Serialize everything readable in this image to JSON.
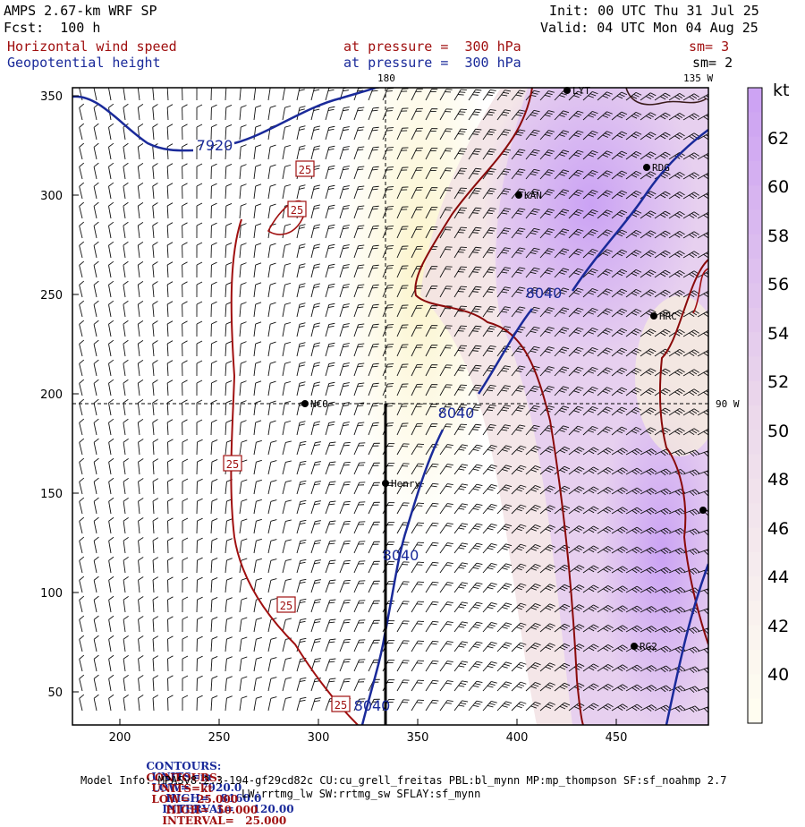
{
  "header": {
    "model_title": "AMPS 2.67-km WRF SP",
    "forecast": "Fcst:  100 h",
    "init": "Init: 00 UTC Thu 31 Jul 25",
    "valid": "Valid: 04 UTC Mon 04 Aug 25",
    "field1_name": "Horizontal wind speed",
    "field1_level": "at pressure =  300 hPa",
    "field1_sm": "sm= 3",
    "field2_name": "Geopotential height",
    "field2_level": "at pressure =  300 hPa",
    "field2_sm": "sm= 2"
  },
  "map": {
    "y_ticks": [
      "350",
      "300",
      "250",
      "200",
      "150",
      "100",
      "50"
    ],
    "x_ticks": [
      "200",
      "250",
      "300",
      "350",
      "400",
      "450"
    ],
    "meridian_180": "180",
    "meridian_135w": "135 W",
    "meridian_90w": "90 W",
    "stations": [
      {
        "name": "LYT"
      },
      {
        "name": "RDG"
      },
      {
        "name": "KAN"
      },
      {
        "name": "HRC"
      },
      {
        "name": "NCO"
      },
      {
        "name": "Henry"
      },
      {
        "name": "RG2"
      }
    ],
    "height_contour_labels": [
      "7920",
      "8040",
      "8040",
      "8040",
      "8040"
    ],
    "wind_contour_labels": [
      "25",
      "25",
      "25",
      "25",
      "25"
    ],
    "colors": {
      "height_contour": "#1a2a9a",
      "wind_contour": "#a01010",
      "shade_40": "#fffff0",
      "shade_44": "#fbf6d8",
      "shade_48": "#f2e2e4",
      "shade_52": "#e6cdef",
      "shade_56": "#d9b6f2",
      "shade_60": "#cfa3f3"
    }
  },
  "colorbar": {
    "unit": "kt",
    "ticks": [
      "62",
      "60",
      "58",
      "56",
      "54",
      "52",
      "50",
      "48",
      "46",
      "44",
      "42",
      "40"
    ]
  },
  "footer": {
    "row1": {
      "label": "CONTOURS:",
      "units": "UNITS=m",
      "low": "LOW=   7920.0",
      "high": "HIGH=   8160.0",
      "interval": "INTERVAL=     120.00"
    },
    "row2": {
      "label": "CONTOURS:",
      "units": "UNITS=kt",
      "low": "LOW=  25.000",
      "high": "HIGH=  50.000",
      "interval": "INTERVAL=   25.000"
    },
    "model_info": "Model Info: MPASv8.2.3-194-gf29cd82c CU:cu_grell_freitas PBL:bl_mynn MP:mp_thompson SF:sf_noahmp 2.7",
    "model_info2": "LW:rrtmg_lw SW:rrtmg_sw SFLAY:sf_mynn"
  }
}
